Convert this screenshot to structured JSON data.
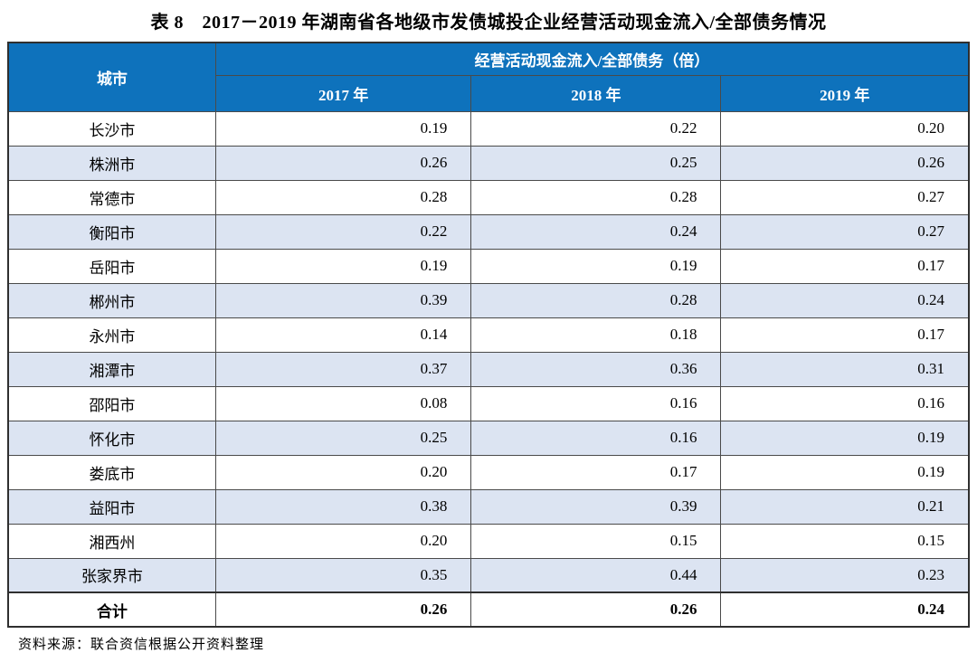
{
  "page": {
    "title": "表 8　2017－2019 年湖南省各地级市发债城投企业经营活动现金流入/全部债务情况",
    "source_note": "资料来源：联合资信根据公开资料整理"
  },
  "table": {
    "city_header": "城市",
    "group_header": "经营活动现金流入/全部债务（倍）",
    "year_headers": [
      "2017 年",
      "2018 年",
      "2019 年"
    ],
    "rows": [
      {
        "city": "长沙市",
        "values": [
          "0.19",
          "0.22",
          "0.20"
        ]
      },
      {
        "city": "株洲市",
        "values": [
          "0.26",
          "0.25",
          "0.26"
        ]
      },
      {
        "city": "常德市",
        "values": [
          "0.28",
          "0.28",
          "0.27"
        ]
      },
      {
        "city": "衡阳市",
        "values": [
          "0.22",
          "0.24",
          "0.27"
        ]
      },
      {
        "city": "岳阳市",
        "values": [
          "0.19",
          "0.19",
          "0.17"
        ]
      },
      {
        "city": "郴州市",
        "values": [
          "0.39",
          "0.28",
          "0.24"
        ]
      },
      {
        "city": "永州市",
        "values": [
          "0.14",
          "0.18",
          "0.17"
        ]
      },
      {
        "city": "湘潭市",
        "values": [
          "0.37",
          "0.36",
          "0.31"
        ]
      },
      {
        "city": "邵阳市",
        "values": [
          "0.08",
          "0.16",
          "0.16"
        ]
      },
      {
        "city": "怀化市",
        "values": [
          "0.25",
          "0.16",
          "0.19"
        ]
      },
      {
        "city": "娄底市",
        "values": [
          "0.20",
          "0.17",
          "0.19"
        ]
      },
      {
        "city": "益阳市",
        "values": [
          "0.38",
          "0.39",
          "0.21"
        ]
      },
      {
        "city": "湘西州",
        "values": [
          "0.20",
          "0.15",
          "0.15"
        ]
      },
      {
        "city": "张家界市",
        "values": [
          "0.35",
          "0.44",
          "0.23"
        ]
      },
      {
        "city": "合计",
        "values": [
          "0.26",
          "0.26",
          "0.24"
        ]
      }
    ]
  },
  "colors": {
    "header_bg": "#0e72bc",
    "header_text": "#ffffff",
    "alt_row_bg": "#dce4f2",
    "border": "#4a4a4a",
    "outer_border": "#2f2f2f"
  }
}
